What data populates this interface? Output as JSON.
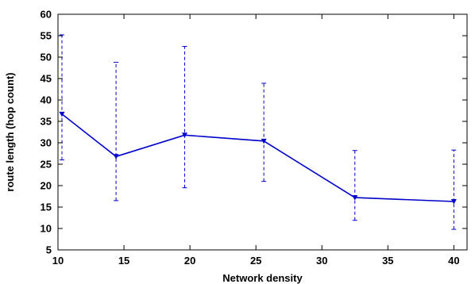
{
  "chart_data": {
    "type": "line",
    "title": "",
    "xlabel": "Network density",
    "ylabel": "route length (hop count)",
    "xlim": [
      10,
      41
    ],
    "ylim": [
      5,
      60
    ],
    "xticks": [
      "10",
      "15",
      "20",
      "25",
      "30",
      "35",
      "40"
    ],
    "yticks": [
      "5",
      "10",
      "15",
      "20",
      "25",
      "30",
      "35",
      "40",
      "45",
      "50",
      "55",
      "60"
    ],
    "grid": false,
    "legend": "none",
    "series": [
      {
        "color": "#0000cc",
        "marker": "down-triangle",
        "points": [
          {
            "x": 10.3,
            "y": 36.7,
            "low": 26.0,
            "high": 55.2
          },
          {
            "x": 14.4,
            "y": 26.8,
            "low": 16.5,
            "high": 48.8
          },
          {
            "x": 19.6,
            "y": 31.8,
            "low": 19.5,
            "high": 52.5
          },
          {
            "x": 25.6,
            "y": 30.4,
            "low": 21.0,
            "high": 43.9
          },
          {
            "x": 32.5,
            "y": 17.2,
            "low": 11.9,
            "high": 28.2
          },
          {
            "x": 40.0,
            "y": 16.3,
            "low": 9.8,
            "high": 28.3
          }
        ]
      }
    ]
  }
}
